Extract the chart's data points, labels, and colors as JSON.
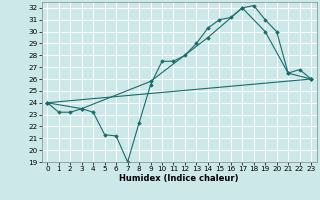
{
  "xlabel": "Humidex (Indice chaleur)",
  "background_color": "#cce8e8",
  "grid_color": "#ffffff",
  "line_color": "#1a6b6b",
  "xlim": [
    -0.5,
    23.5
  ],
  "ylim": [
    19,
    32.5
  ],
  "yticks": [
    19,
    20,
    21,
    22,
    23,
    24,
    25,
    26,
    27,
    28,
    29,
    30,
    31,
    32
  ],
  "xticks": [
    0,
    1,
    2,
    3,
    4,
    5,
    6,
    7,
    8,
    9,
    10,
    11,
    12,
    13,
    14,
    15,
    16,
    17,
    18,
    19,
    20,
    21,
    22,
    23
  ],
  "line1_x": [
    0,
    1,
    2,
    3,
    4,
    5,
    6,
    7,
    8,
    9,
    10,
    11,
    12,
    13,
    14,
    15,
    16,
    17,
    18,
    19,
    20,
    21,
    22,
    23
  ],
  "line1_y": [
    24.0,
    23.2,
    23.2,
    23.5,
    23.2,
    21.3,
    21.2,
    19.0,
    22.3,
    25.5,
    27.5,
    27.5,
    28.0,
    29.0,
    30.3,
    31.0,
    31.2,
    32.0,
    32.2,
    31.0,
    30.0,
    26.5,
    26.8,
    26.0
  ],
  "line2_x": [
    0,
    3,
    9,
    14,
    17,
    19,
    21,
    23
  ],
  "line2_y": [
    24.0,
    23.5,
    25.8,
    29.5,
    32.0,
    30.0,
    26.5,
    26.0
  ],
  "line3_x": [
    0,
    23
  ],
  "line3_y": [
    24.0,
    26.0
  ]
}
